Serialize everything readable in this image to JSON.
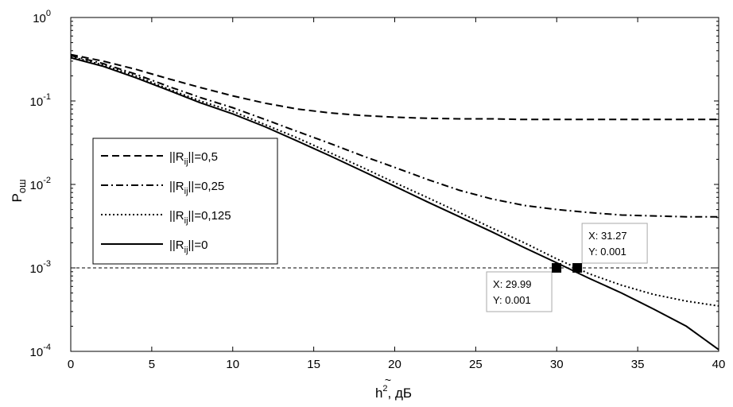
{
  "chart_data": {
    "type": "line",
    "yscale": "log",
    "xlim": [
      0,
      40
    ],
    "ylim": [
      0.0001,
      1
    ],
    "xticks": [
      0,
      5,
      10,
      15,
      20,
      25,
      30,
      35,
      40
    ],
    "yticks": [
      {
        "value": 1,
        "base": "10",
        "exp": "0"
      },
      {
        "value": 0.1,
        "base": "10",
        "exp": "-1"
      },
      {
        "value": 0.01,
        "base": "10",
        "exp": "-2"
      },
      {
        "value": 0.001,
        "base": "10",
        "exp": "-3"
      },
      {
        "value": 0.0001,
        "base": "10",
        "exp": "-4"
      }
    ],
    "xlabel": {
      "accent": "~",
      "main": "h",
      "sup": "2",
      "suffix": ", дБ"
    },
    "ylabel": {
      "main": "P",
      "sub": "ош"
    },
    "grid": false,
    "reference_line": {
      "y": 0.001,
      "style": "dashed"
    },
    "legend_position": "middle-left",
    "series": [
      {
        "name": "||Rij||=0,5",
        "label_parts": {
          "pre": "||R",
          "sub": "ij",
          "post": "||=0,5"
        },
        "style": "dashed",
        "x": [
          0,
          2,
          4,
          6,
          8,
          10,
          12,
          14,
          16,
          18,
          20,
          22,
          24,
          26,
          28,
          30,
          32,
          34,
          36,
          38,
          40
        ],
        "y": [
          0.36,
          0.3,
          0.24,
          0.185,
          0.145,
          0.115,
          0.094,
          0.08,
          0.072,
          0.067,
          0.064,
          0.062,
          0.061,
          0.061,
          0.06,
          0.06,
          0.06,
          0.06,
          0.06,
          0.06,
          0.06
        ]
      },
      {
        "name": "||Rij||=0,25",
        "label_parts": {
          "pre": "||R",
          "sub": "ij",
          "post": "||=0,25"
        },
        "style": "dashdot",
        "x": [
          0,
          2,
          4,
          6,
          8,
          10,
          12,
          14,
          16,
          18,
          20,
          22,
          24,
          26,
          28,
          30,
          32,
          34,
          36,
          38,
          40
        ],
        "y": [
          0.35,
          0.28,
          0.21,
          0.15,
          0.11,
          0.083,
          0.06,
          0.043,
          0.031,
          0.022,
          0.016,
          0.0115,
          0.0085,
          0.0067,
          0.0056,
          0.005,
          0.0046,
          0.0043,
          0.0042,
          0.0041,
          0.0041
        ]
      },
      {
        "name": "||Rij||=0,125",
        "label_parts": {
          "pre": "||R",
          "sub": "ij",
          "post": "||=0,125"
        },
        "style": "dotted",
        "x": [
          0,
          2,
          4,
          6,
          8,
          10,
          12,
          14,
          16,
          18,
          20,
          22,
          24,
          26,
          28,
          30,
          31,
          32,
          34,
          36,
          38,
          40
        ],
        "y": [
          0.34,
          0.27,
          0.2,
          0.14,
          0.1,
          0.075,
          0.052,
          0.036,
          0.024,
          0.016,
          0.0105,
          0.007,
          0.0046,
          0.003,
          0.002,
          0.00128,
          0.00105,
          0.00085,
          0.00062,
          0.00048,
          0.0004,
          0.00035
        ]
      },
      {
        "name": "||Rij||=0",
        "label_parts": {
          "pre": "||R",
          "sub": "ij",
          "post": "||=0"
        },
        "style": "solid",
        "x": [
          0,
          2,
          4,
          6,
          8,
          10,
          12,
          14,
          16,
          18,
          20,
          22,
          24,
          26,
          28,
          30,
          32,
          34,
          36,
          38,
          40
        ],
        "y": [
          0.33,
          0.26,
          0.19,
          0.135,
          0.095,
          0.07,
          0.049,
          0.033,
          0.022,
          0.0145,
          0.0095,
          0.0062,
          0.0041,
          0.0027,
          0.00175,
          0.00115,
          0.00075,
          0.0005,
          0.00032,
          0.0002,
          0.000105
        ]
      }
    ],
    "datatips": [
      {
        "x": 29.99,
        "y": 0.001,
        "xtext": "X: 29.99",
        "ytext": "Y: 0.001",
        "box_side": "below-left"
      },
      {
        "x": 31.27,
        "y": 0.001,
        "xtext": "X: 31.27",
        "ytext": "Y: 0.001",
        "box_side": "above-right"
      }
    ]
  }
}
